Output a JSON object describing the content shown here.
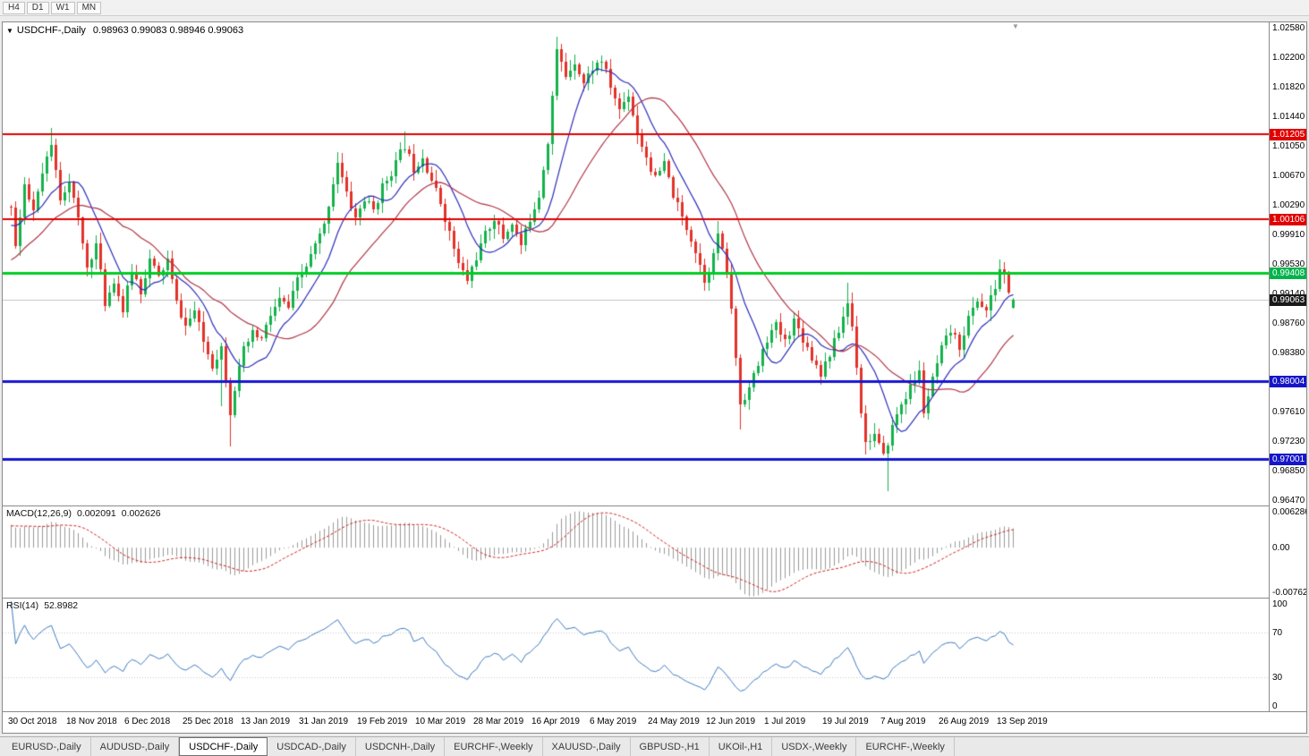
{
  "toolbar": {
    "periods": [
      "H4",
      "D1",
      "W1",
      "MN"
    ]
  },
  "icons": {
    "symbol_dropdown": "▼",
    "shift_marker": "▼"
  },
  "chart": {
    "symbol_period": "USDCHF-,Daily",
    "ohlc_text": "0.98963 0.99083 0.98946 0.99063",
    "price_scale": [
      "1.02580",
      "1.02200",
      "1.01820",
      "1.01440",
      "1.01050",
      "1.00670",
      "1.00290",
      "0.99910",
      "0.99530",
      "0.99140",
      "0.98760",
      "0.98380",
      "0.98000",
      "0.97610",
      "0.97230",
      "0.96850",
      "0.96470"
    ],
    "price_tags": [
      {
        "text": "1.01205",
        "price": 1.01205,
        "bg": "#e00000"
      },
      {
        "text": "1.00106",
        "price": 1.00106,
        "bg": "#e00000"
      },
      {
        "text": "0.99408",
        "price": 0.99408,
        "bg": "#00b34a"
      },
      {
        "text": "0.99063",
        "price": 0.99063,
        "bg": "#1a1a1a"
      },
      {
        "text": "0.98004",
        "price": 0.98004,
        "bg": "#1616c8"
      },
      {
        "text": "0.97001",
        "price": 0.97001,
        "bg": "#1616c8"
      }
    ],
    "levels": [
      {
        "price": 1.01205,
        "color": "#e00000",
        "width": 2
      },
      {
        "price": 1.00106,
        "color": "#e00000",
        "width": 2
      },
      {
        "price": 0.99408,
        "color": "#00cc22",
        "width": 3
      },
      {
        "price": 0.98004,
        "color": "#1616d0",
        "width": 3
      },
      {
        "price": 0.97001,
        "color": "#1616d0",
        "width": 3
      }
    ],
    "date_labels": [
      {
        "label": "30 Oct 2018",
        "bar": 0
      },
      {
        "label": "18 Nov 2018",
        "bar": 13
      },
      {
        "label": "6 Dec 2018",
        "bar": 26
      },
      {
        "label": "25 Dec 2018",
        "bar": 39
      },
      {
        "label": "13 Jan 2019",
        "bar": 52
      },
      {
        "label": "31 Jan 2019",
        "bar": 65
      },
      {
        "label": "19 Feb 2019",
        "bar": 78
      },
      {
        "label": "10 Mar 2019",
        "bar": 91
      },
      {
        "label": "28 Mar 2019",
        "bar": 104
      },
      {
        "label": "16 Apr 2019",
        "bar": 117
      },
      {
        "label": "6 May 2019",
        "bar": 130
      },
      {
        "label": "24 May 2019",
        "bar": 143
      },
      {
        "label": "12 Jun 2019",
        "bar": 156
      },
      {
        "label": "1 Jul 2019",
        "bar": 169
      },
      {
        "label": "19 Jul 2019",
        "bar": 182
      },
      {
        "label": "7 Aug 2019",
        "bar": 195
      },
      {
        "label": "26 Aug 2019",
        "bar": 208
      },
      {
        "label": "13 Sep 2019",
        "bar": 221
      }
    ]
  },
  "macd": {
    "label": "MACD(12,26,9)",
    "value_main": "0.002091",
    "value_signal": "0.002626",
    "fast": 12,
    "slow": 26,
    "signal": 9,
    "range_min": -0.00762,
    "range_max": 0.006286,
    "scale_labels": [
      {
        "text": "0.006286",
        "value": 0.006286
      },
      {
        "text": "0.00",
        "value": 0
      },
      {
        "text": "-0.00762",
        "value": -0.00762
      }
    ]
  },
  "rsi": {
    "label": "RSI(14)",
    "value": "52.8982",
    "period": 14,
    "levels": [
      70,
      30
    ],
    "scale_labels": [
      {
        "text": "100",
        "value": 100
      },
      {
        "text": "70",
        "value": 70
      },
      {
        "text": "30",
        "value": 30
      },
      {
        "text": "0",
        "value": 0
      }
    ]
  },
  "tabs": [
    {
      "label": "EURUSD-,Daily",
      "active": false
    },
    {
      "label": "AUDUSD-,Daily",
      "active": false
    },
    {
      "label": "USDCHF-,Daily",
      "active": true
    },
    {
      "label": "USDCAD-,Daily",
      "active": false
    },
    {
      "label": "USDCNH-,Daily",
      "active": false
    },
    {
      "label": "EURCHF-,Weekly",
      "active": false
    },
    {
      "label": "XAUUSD-,Daily",
      "active": false
    },
    {
      "label": "GBPUSD-,H1",
      "active": false
    },
    {
      "label": "UKOil-,H1",
      "active": false
    },
    {
      "label": "USDX-,Weekly",
      "active": false
    },
    {
      "label": "EURCHF-,Weekly",
      "active": false
    }
  ],
  "colors": {
    "candle_up": "#14b24c",
    "candle_down": "#e2322a",
    "ma_fast": "#2d2dbb",
    "ma_slow": "#b13446",
    "macd_hist": "#9a9a9a",
    "macd_signal": "#cf2020",
    "rsi_line": "#3e7cc0",
    "current_price_line": "#c4c4c4"
  },
  "chart_data": {
    "type": "candlestick",
    "symbol": "USDCHF",
    "period": "Daily",
    "current_ohlc": {
      "open": 0.98963,
      "high": 0.99083,
      "low": 0.98946,
      "close": 0.99063
    },
    "price_axis_top": 1.0265,
    "price_axis_bottom": 0.964,
    "bars_rendered": 225,
    "first_history_bar": -30,
    "moving_averages": [
      {
        "type": "sma",
        "period": 10
      },
      {
        "type": "sma",
        "period": 25
      }
    ],
    "price_anchors": [
      [
        -30,
        0.9845
      ],
      [
        -8,
        0.9985
      ],
      [
        -3,
        1.0005
      ],
      [
        0,
        1.003
      ],
      [
        1,
        0.9975
      ],
      [
        3,
        1.005
      ],
      [
        5,
        1.002
      ],
      [
        7,
        1.0068
      ],
      [
        9,
        1.0105
      ],
      [
        11,
        1.0038
      ],
      [
        13,
        1.0062
      ],
      [
        15,
        1.0008
      ],
      [
        17,
        0.9948
      ],
      [
        19,
        0.9978
      ],
      [
        21,
        0.9902
      ],
      [
        23,
        0.9932
      ],
      [
        25,
        0.9892
      ],
      [
        27,
        0.9945
      ],
      [
        29,
        0.9918
      ],
      [
        31,
        0.9958
      ],
      [
        33,
        0.9935
      ],
      [
        35,
        0.9958
      ],
      [
        37,
        0.9902
      ],
      [
        39,
        0.9872
      ],
      [
        41,
        0.9892
      ],
      [
        43,
        0.9852
      ],
      [
        45,
        0.9822
      ],
      [
        47,
        0.9845
      ],
      [
        49,
        0.9762
      ],
      [
        50,
        0.9792
      ],
      [
        52,
        0.984
      ],
      [
        54,
        0.9862
      ],
      [
        56,
        0.9855
      ],
      [
        58,
        0.9886
      ],
      [
        60,
        0.9906
      ],
      [
        62,
        0.9896
      ],
      [
        64,
        0.993
      ],
      [
        66,
        0.995
      ],
      [
        68,
        0.9976
      ],
      [
        70,
        1.0002
      ],
      [
        72,
        1.0058
      ],
      [
        73,
        1.0085
      ],
      [
        75,
        1.0042
      ],
      [
        77,
        1.0012
      ],
      [
        79,
        1.0036
      ],
      [
        81,
        1.0022
      ],
      [
        83,
        1.0052
      ],
      [
        85,
        1.0072
      ],
      [
        88,
        1.0106
      ],
      [
        90,
        1.0076
      ],
      [
        92,
        1.0092
      ],
      [
        94,
        1.0062
      ],
      [
        96,
        1.0032
      ],
      [
        98,
        0.9992
      ],
      [
        100,
        0.9952
      ],
      [
        102,
        0.9932
      ],
      [
        104,
        0.9962
      ],
      [
        106,
        0.999
      ],
      [
        108,
        1.0012
      ],
      [
        110,
        0.9986
      ],
      [
        112,
        1.0006
      ],
      [
        114,
        0.9976
      ],
      [
        116,
        1.0012
      ],
      [
        118,
        1.0042
      ],
      [
        120,
        1.0112
      ],
      [
        122,
        1.0228
      ],
      [
        124,
        1.0196
      ],
      [
        126,
        1.0216
      ],
      [
        128,
        1.0186
      ],
      [
        130,
        1.0206
      ],
      [
        132,
        1.0216
      ],
      [
        134,
        1.0182
      ],
      [
        136,
        1.0152
      ],
      [
        138,
        1.0172
      ],
      [
        140,
        1.0122
      ],
      [
        142,
        1.0092
      ],
      [
        144,
        1.0062
      ],
      [
        146,
        1.0082
      ],
      [
        148,
        1.0042
      ],
      [
        150,
        1.0012
      ],
      [
        152,
        0.9986
      ],
      [
        154,
        0.9952
      ],
      [
        155,
        0.9932
      ],
      [
        157,
        0.9962
      ],
      [
        158,
        0.9992
      ],
      [
        160,
        0.9942
      ],
      [
        161,
        0.9892
      ],
      [
        162,
        0.9832
      ],
      [
        163,
        0.9772
      ],
      [
        165,
        0.9792
      ],
      [
        167,
        0.9822
      ],
      [
        169,
        0.9856
      ],
      [
        171,
        0.9872
      ],
      [
        173,
        0.9852
      ],
      [
        175,
        0.988
      ],
      [
        177,
        0.9856
      ],
      [
        179,
        0.9832
      ],
      [
        181,
        0.9812
      ],
      [
        183,
        0.9836
      ],
      [
        185,
        0.9866
      ],
      [
        187,
        0.9902
      ],
      [
        188,
        0.9872
      ],
      [
        189,
        0.9822
      ],
      [
        190,
        0.9762
      ],
      [
        191,
        0.9722
      ],
      [
        193,
        0.9732
      ],
      [
        195,
        0.9702
      ],
      [
        197,
        0.9742
      ],
      [
        199,
        0.9772
      ],
      [
        201,
        0.9792
      ],
      [
        203,
        0.9812
      ],
      [
        204,
        0.9762
      ],
      [
        206,
        0.9802
      ],
      [
        208,
        0.9842
      ],
      [
        210,
        0.9866
      ],
      [
        212,
        0.9846
      ],
      [
        214,
        0.9882
      ],
      [
        216,
        0.9906
      ],
      [
        218,
        0.9892
      ],
      [
        220,
        0.9922
      ],
      [
        221,
        0.9946
      ],
      [
        222,
        0.9936
      ],
      [
        223,
        0.9918
      ],
      [
        224,
        0.99063
      ]
    ],
    "wick_events": [
      {
        "bar": 9,
        "high": 1.0128
      },
      {
        "bar": 47,
        "low": 0.9768
      },
      {
        "bar": 49,
        "low": 0.9716
      },
      {
        "bar": 73,
        "high": 1.0097
      },
      {
        "bar": 88,
        "high": 1.0124
      },
      {
        "bar": 122,
        "high": 1.0247
      },
      {
        "bar": 158,
        "high": 1.0008
      },
      {
        "bar": 163,
        "low": 0.9738
      },
      {
        "bar": 187,
        "high": 0.9928
      },
      {
        "bar": 191,
        "low": 0.9706
      },
      {
        "bar": 196,
        "low": 0.9659
      },
      {
        "bar": 221,
        "high": 0.9952
      }
    ]
  }
}
